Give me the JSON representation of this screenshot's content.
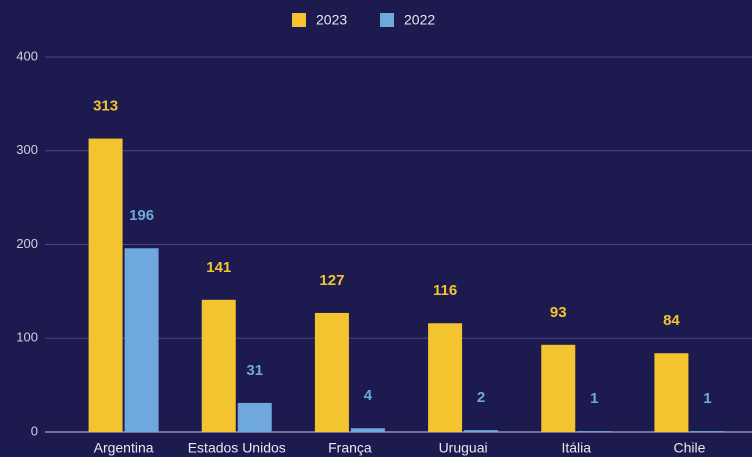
{
  "chart_data": {
    "type": "bar",
    "categories": [
      "Argentina",
      "Estados Unidos",
      "França",
      "Uruguai",
      "Itália",
      "Chile"
    ],
    "series": [
      {
        "name": "2023",
        "color": "#f4c430",
        "values": [
          313,
          141,
          127,
          116,
          93,
          84
        ]
      },
      {
        "name": "2022",
        "color": "#6fa8dc",
        "values": [
          196,
          31,
          4,
          2,
          1,
          1
        ]
      }
    ],
    "ylim": [
      0,
      400
    ],
    "yticks": [
      0,
      100,
      200,
      300,
      400
    ],
    "grid": true,
    "legend": "top"
  }
}
